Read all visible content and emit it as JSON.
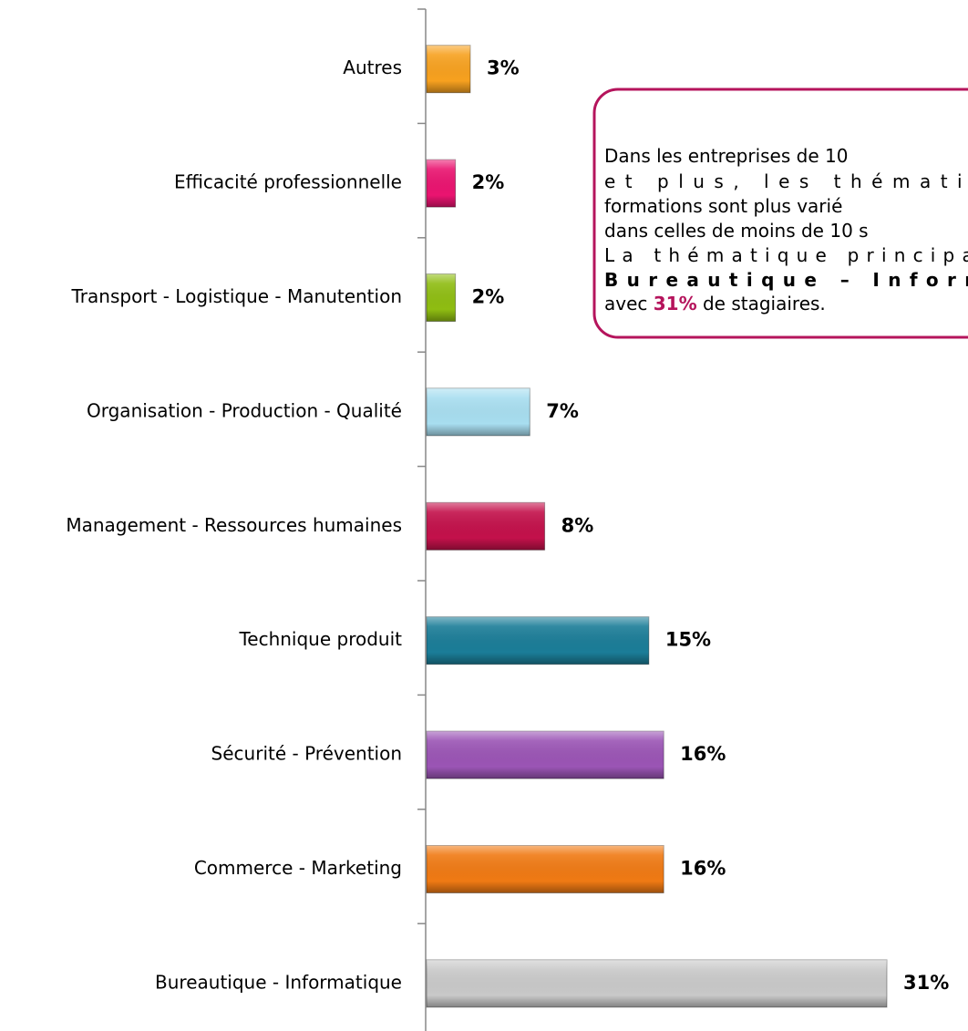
{
  "chart_data": {
    "type": "bar",
    "orientation": "horizontal",
    "categories": [
      "Autres",
      "Efficacité professionnelle",
      "Transport - Logistique - Manutention",
      "Organisation - Production - Qualité",
      "Management - Ressources humaines",
      "Technique produit",
      "Sécurité - Prévention",
      "Commerce - Marketing",
      "Bureautique - Informatique"
    ],
    "values": [
      3,
      2,
      2,
      7,
      8,
      15,
      16,
      16,
      31
    ],
    "value_labels": [
      "3%",
      "2%",
      "2%",
      "7%",
      "8%",
      "15%",
      "16%",
      "16%",
      "31%"
    ],
    "colors": [
      "#f7a11f",
      "#ea1470",
      "#8fbd12",
      "#a8def0",
      "#c3114b",
      "#1b7d98",
      "#9b55b5",
      "#f07a14",
      "#c9c9c9"
    ]
  },
  "annotation": {
    "lines": [
      [
        {
          "text": "Dans les entreprises de 10"
        }
      ],
      [
        {
          "text": "et plus, les thématiqu"
        }
      ],
      [
        {
          "text": "formations sont plus varié"
        }
      ],
      [
        {
          "text": "dans celles de moins de 10 s"
        }
      ],
      [
        {
          "text": "La thématique principale"
        }
      ],
      [
        {
          "text": "Bureautique – Informa",
          "bold": true
        }
      ],
      [
        {
          "text": "avec "
        },
        {
          "text": "31%",
          "bold": true,
          "color": "#b5145c"
        },
        {
          "text": " de stagiaires."
        }
      ]
    ]
  }
}
